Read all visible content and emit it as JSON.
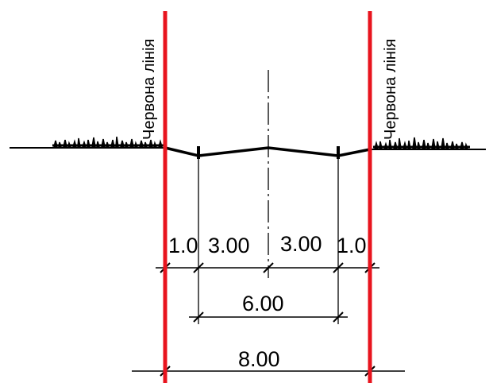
{
  "red_line_label": "Червона лінія",
  "dimensions": {
    "left_margin": "1.0",
    "left_carriageway": "3.00",
    "right_carriageway": "3.00",
    "right_margin": "1.0",
    "road_width": "6.00",
    "total_width": "8.00"
  },
  "colors": {
    "red_line": "#e8141e",
    "ink": "#000000"
  }
}
